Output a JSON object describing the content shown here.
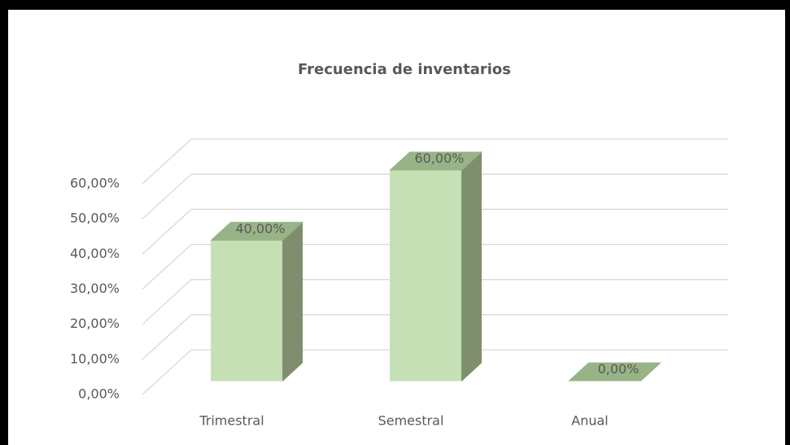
{
  "chart_data": {
    "type": "bar3d",
    "title": "Frecuencia de inventarios",
    "categories": [
      "Trimestral",
      "Semestral",
      "Anual"
    ],
    "values": [
      40,
      60,
      0
    ],
    "value_labels": [
      "40,00%",
      "60,00%",
      "0,00%"
    ],
    "color": "#c5e0b4",
    "ylim": [
      0,
      60
    ],
    "yticks": [
      {
        "value": 0,
        "label": "0,00%"
      },
      {
        "value": 10,
        "label": "10,00%"
      },
      {
        "value": 20,
        "label": "20,00%"
      },
      {
        "value": 30,
        "label": "30,00%"
      },
      {
        "value": 40,
        "label": "40,00%"
      },
      {
        "value": 50,
        "label": "50,00%"
      },
      {
        "value": 60,
        "label": "60,00%"
      }
    ],
    "grid": true
  }
}
